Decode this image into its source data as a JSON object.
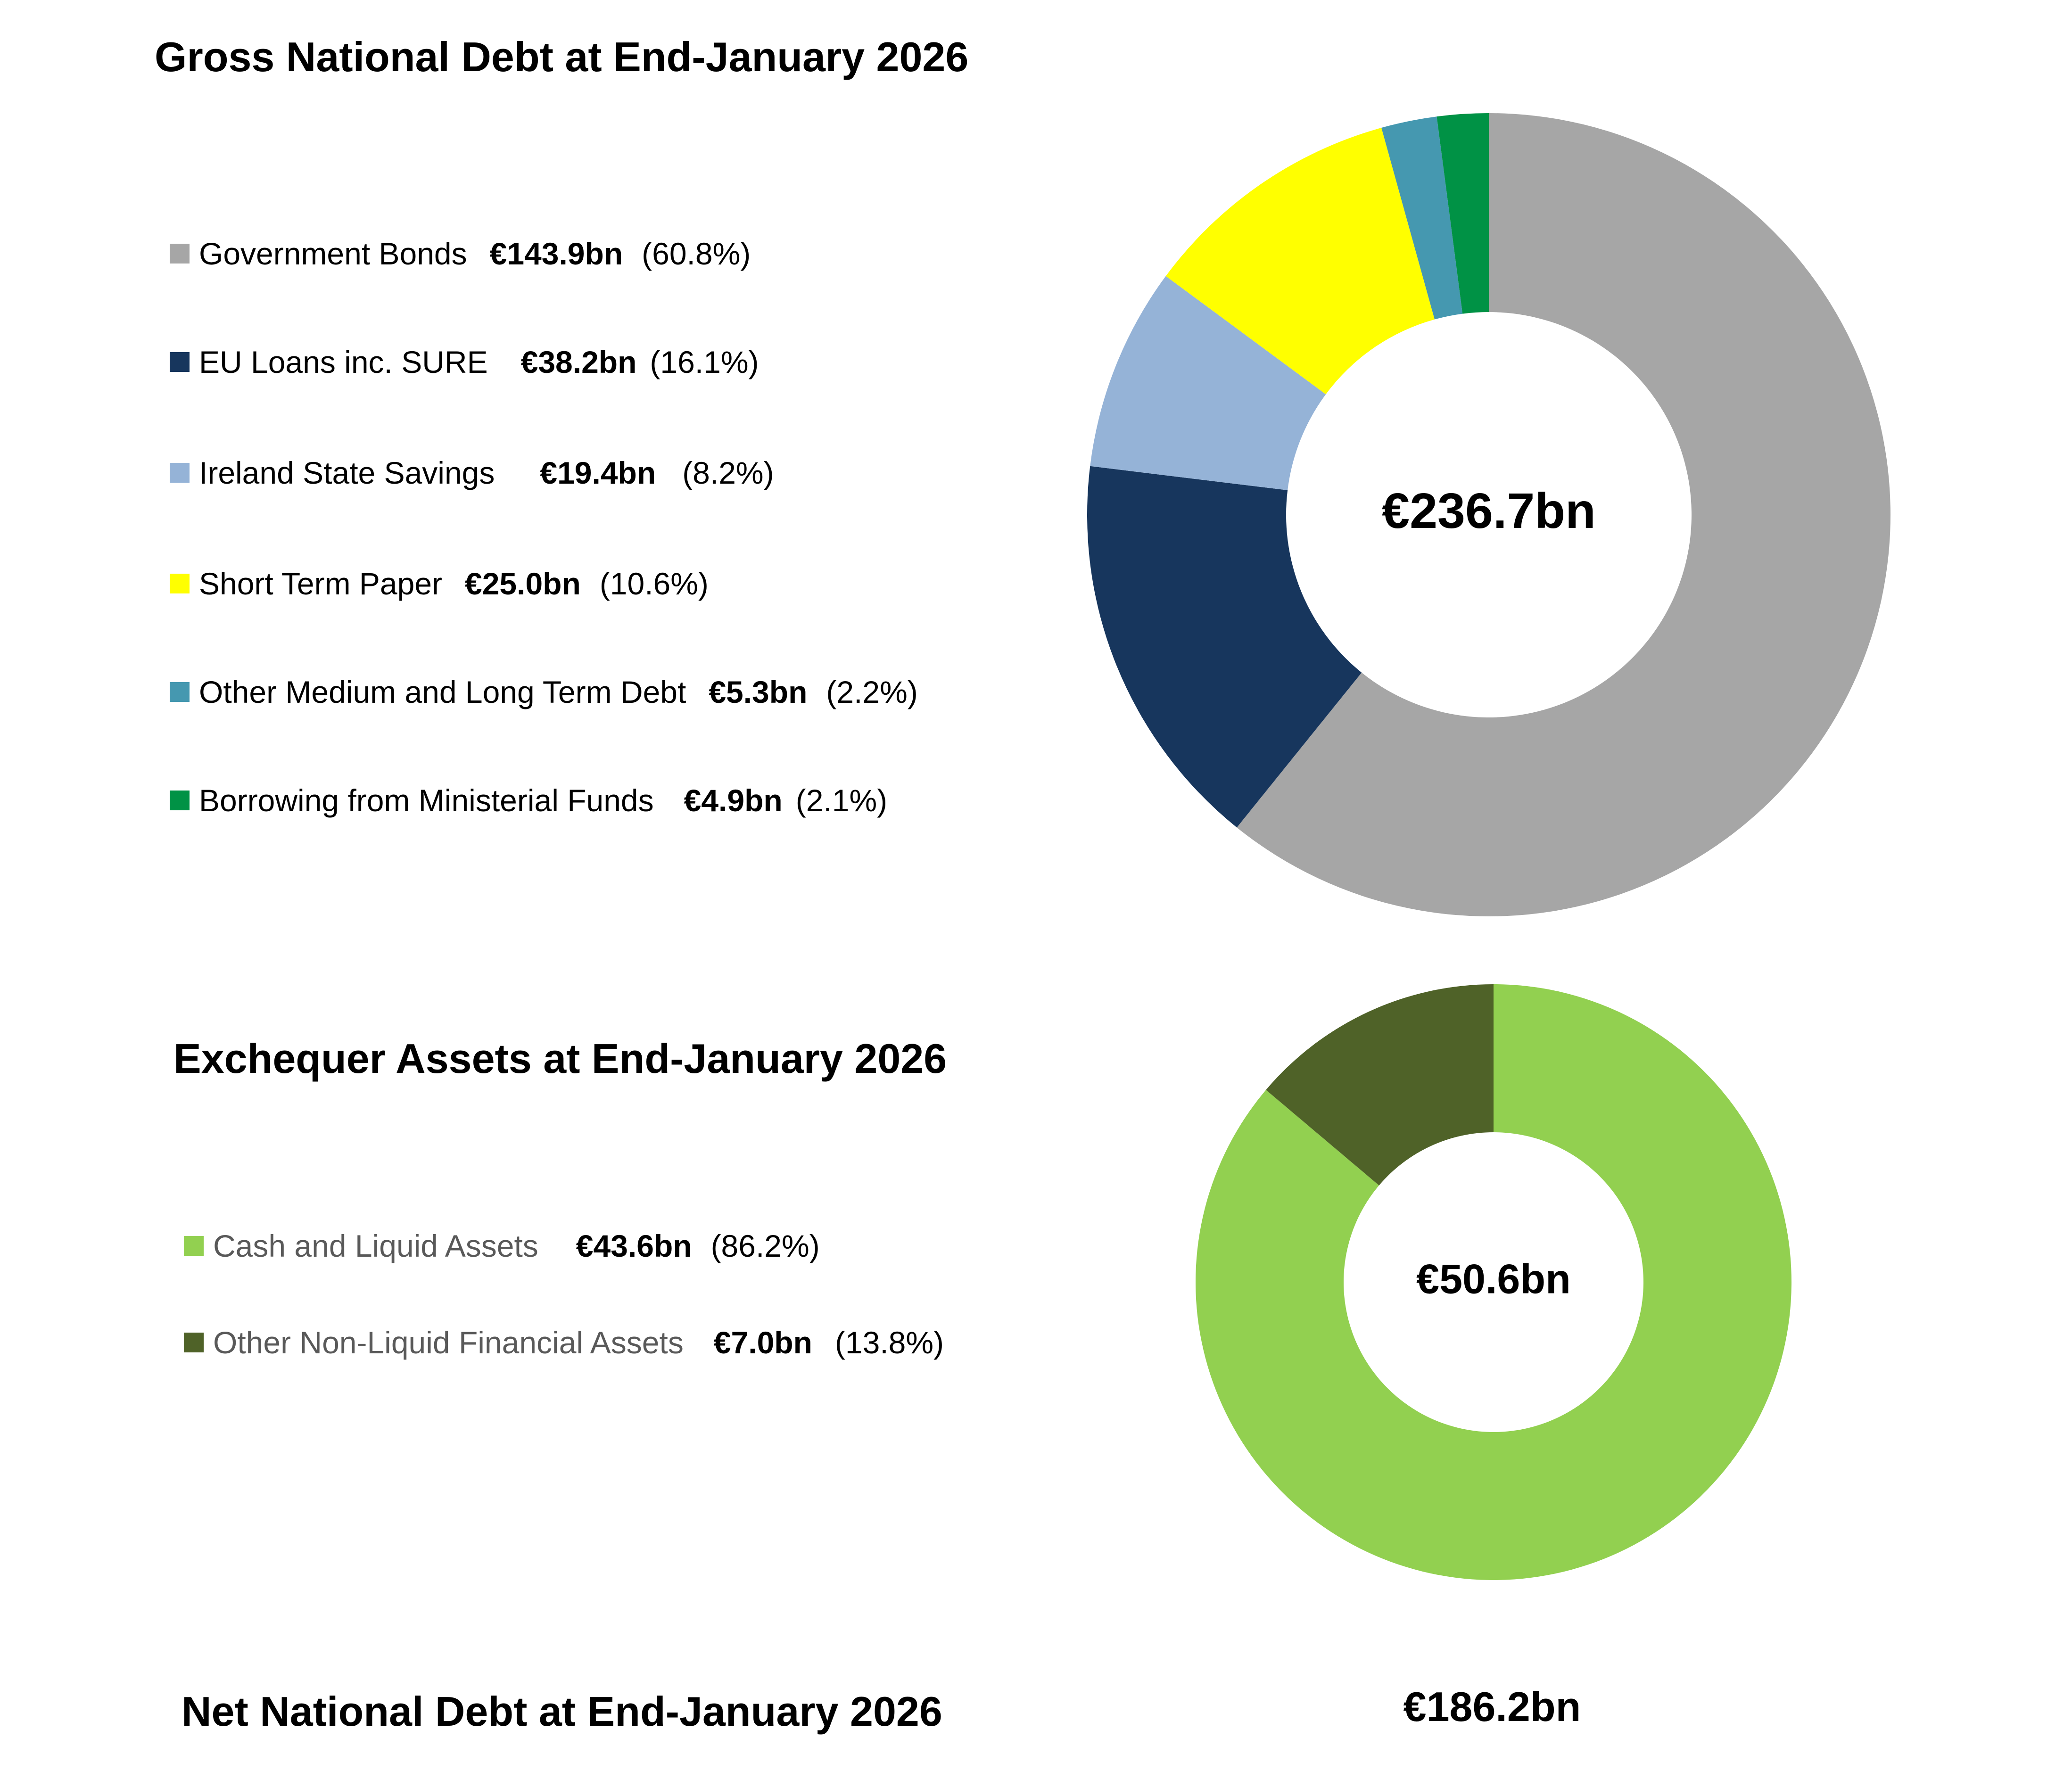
{
  "chart_data": [
    {
      "type": "pie",
      "title": "Gross National Debt at End-January 2026",
      "center_label": "€236.7bn",
      "slices": [
        {
          "name": "Government Bonds",
          "value": 143.9,
          "value_label": "€143.9bn",
          "pct_label": "(60.8%)",
          "color": "#A6A6A6"
        },
        {
          "name": "EU Loans inc. SURE",
          "value": 38.2,
          "value_label": "€38.2bn",
          "pct_label": "(16.1%)",
          "color": "#17365D"
        },
        {
          "name": "Ireland State Savings",
          "value": 19.4,
          "value_label": "€19.4bn",
          "pct_label": "(8.2%)",
          "color": "#95B3D7"
        },
        {
          "name": "Short Term Paper",
          "value": 25.0,
          "value_label": "€25.0bn",
          "pct_label": "(10.6%)",
          "color": "#FFFF00"
        },
        {
          "name": "Other Medium and Long Term Debt",
          "value": 5.3,
          "value_label": "€5.3bn",
          "pct_label": "(2.2%)",
          "color": "#4598B0"
        },
        {
          "name": "Borrowing from Ministerial Funds",
          "value": 4.9,
          "value_label": "€4.9bn",
          "pct_label": "(2.1%)",
          "color": "#009245"
        }
      ]
    },
    {
      "type": "pie",
      "title": "Exchequer Assets at End-January 2026",
      "center_label": "€50.6bn",
      "slices": [
        {
          "name": "Cash and Liquid Assets",
          "value": 43.6,
          "value_label": "€43.6bn",
          "pct_label": "(86.2%)",
          "color": "#92D050"
        },
        {
          "name": "Other Non-Liquid Financial Assets",
          "value": 7.0,
          "value_label": "€7.0bn",
          "pct_label": "(13.8%)",
          "color": "#4F6228"
        }
      ]
    }
  ],
  "net": {
    "title": "Net National Debt at End-January 2026",
    "value": "€186.2bn"
  }
}
